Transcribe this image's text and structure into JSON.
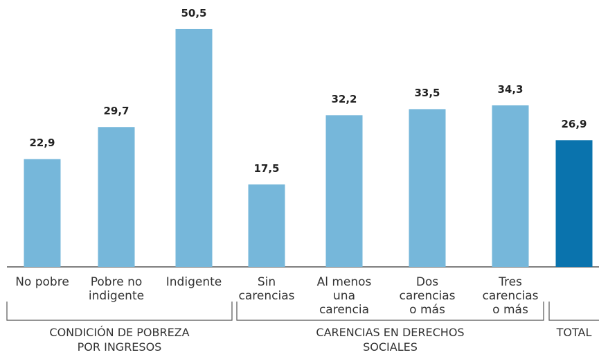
{
  "chart_data": {
    "type": "bar",
    "categories": [
      "No pobre",
      "Pobre no\nindigente",
      "Indigente",
      "Sin\ncarencias",
      "Al menos\nuna\ncarencia",
      "Dos\ncarencias\no más",
      "Tres\ncarencias\no más",
      null
    ],
    "values": [
      22.9,
      29.7,
      50.5,
      17.5,
      32.2,
      33.5,
      34.3,
      26.9
    ],
    "value_labels": [
      "22,9",
      "29,7",
      "50,5",
      "17,5",
      "32,2",
      "33,5",
      "34,3",
      "26,9"
    ],
    "colors": [
      "#76b7da",
      "#76b7da",
      "#76b7da",
      "#76b7da",
      "#76b7da",
      "#76b7da",
      "#76b7da",
      "#0a73ad"
    ],
    "groups": [
      "CONDICIÓN DE POBREZA\nPOR INGRESOS",
      "CARENCIAS EN DERECHOS\nSOCIALES",
      "TOTAL"
    ],
    "ylim": [
      0,
      55
    ]
  }
}
